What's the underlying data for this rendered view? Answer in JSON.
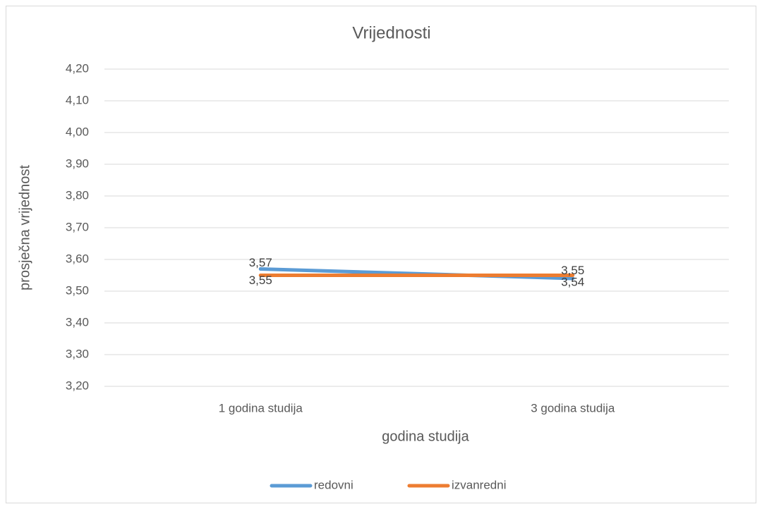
{
  "chart_data": {
    "type": "line",
    "title": "Vrijednosti",
    "x_label": "godina studija",
    "y_label": "prosječna vrijednost",
    "categories": [
      "1 godina studija",
      "3 godina studija"
    ],
    "series": [
      {
        "name": "redovni",
        "color": "#5b9bd5",
        "values": [
          3.57,
          3.54
        ],
        "value_labels": [
          "3,57",
          "3,54"
        ]
      },
      {
        "name": "izvanredni",
        "color": "#ed7d31",
        "values": [
          3.55,
          3.55
        ],
        "value_labels": [
          "3,55",
          "3,55"
        ]
      }
    ],
    "ylim": [
      3.2,
      4.2
    ],
    "yticks": [
      {
        "value": 3.2,
        "label": "3,20"
      },
      {
        "value": 3.3,
        "label": "3,30"
      },
      {
        "value": 3.4,
        "label": "3,40"
      },
      {
        "value": 3.5,
        "label": "3,50"
      },
      {
        "value": 3.6,
        "label": "3,60"
      },
      {
        "value": 3.7,
        "label": "3,70"
      },
      {
        "value": 3.8,
        "label": "3,80"
      },
      {
        "value": 3.9,
        "label": "3,90"
      },
      {
        "value": 4.0,
        "label": "4,00"
      },
      {
        "value": 4.1,
        "label": "4,10"
      },
      {
        "value": 4.2,
        "label": "4,20"
      }
    ],
    "grid": true,
    "legend": "bottom"
  }
}
